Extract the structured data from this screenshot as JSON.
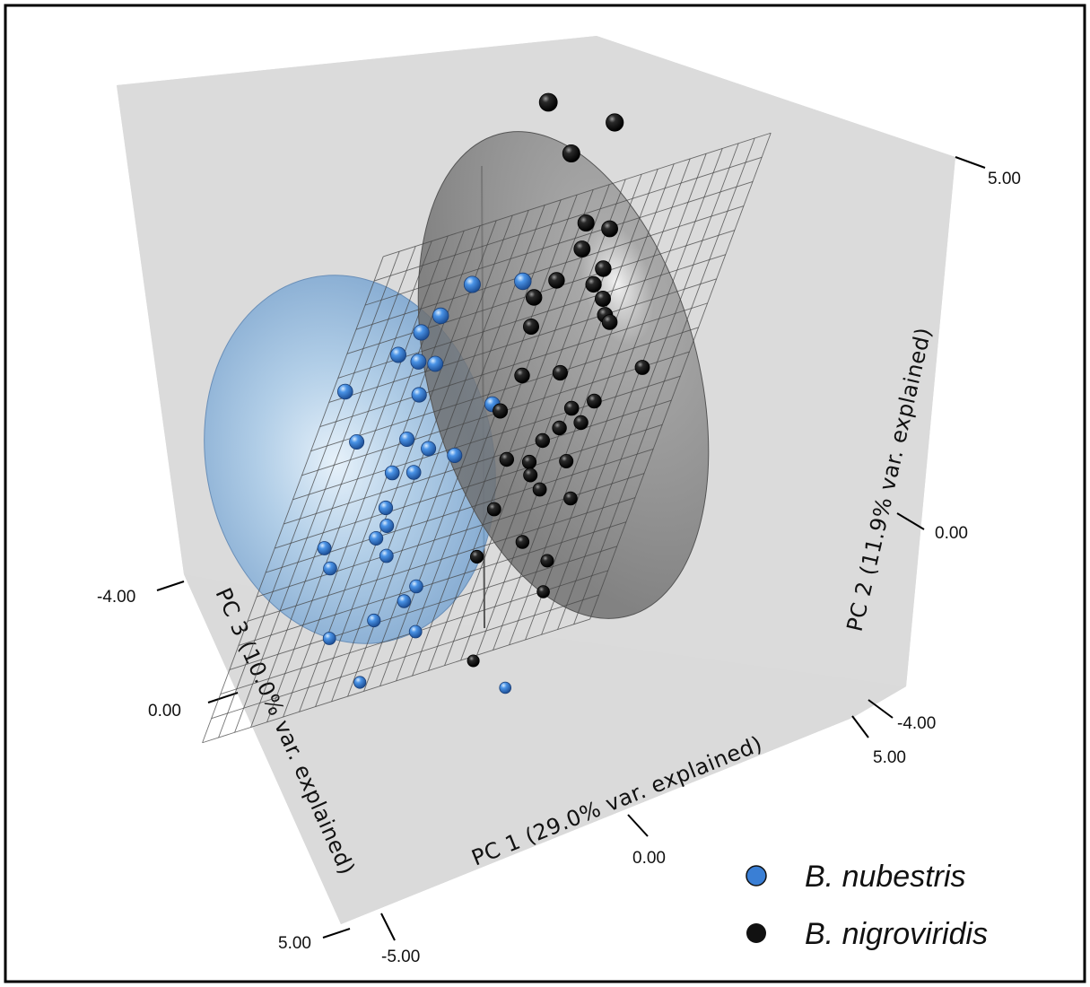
{
  "chart_data": {
    "type": "scatter",
    "title": "",
    "axes": {
      "x": {
        "label": "PC 1 (29.0% var. explained)",
        "ticks": [
          "-5.00",
          "0.00",
          "5.00"
        ],
        "range": [
          -5,
          5
        ]
      },
      "y": {
        "label": "PC 2 (11.9% var. explained)",
        "ticks": [
          "-4.00",
          "0.00",
          "5.00"
        ],
        "range": [
          -4,
          5
        ]
      },
      "z": {
        "label": "PC 3 (10.0% var. explained)",
        "ticks": [
          "-4.00",
          "0.00",
          "5.00"
        ],
        "range": [
          -4,
          5
        ]
      }
    },
    "legend_position": "bottom-right",
    "ellipsoids": true,
    "regression_plane": true,
    "series": [
      {
        "name": "B. nubestris",
        "color": "#3a7fd5",
        "points": [
          {
            "x": -4.3,
            "y": 1.9,
            "z": -0.6
          },
          {
            "x": -3.7,
            "y": 1.1,
            "z": -0.2
          },
          {
            "x": -3.1,
            "y": 2.1,
            "z": -1.0
          },
          {
            "x": -2.6,
            "y": 2.3,
            "z": -1.2
          },
          {
            "x": -2.4,
            "y": 2.0,
            "z": -0.8
          },
          {
            "x": -2.2,
            "y": 2.4,
            "z": -1.4
          },
          {
            "x": -2.1,
            "y": 1.6,
            "z": -0.4
          },
          {
            "x": -2.0,
            "y": 1.8,
            "z": -0.9
          },
          {
            "x": -1.6,
            "y": 2.6,
            "z": -1.8
          },
          {
            "x": -0.4,
            "y": 2.2,
            "z": -2.1
          },
          {
            "x": -2.3,
            "y": 0.9,
            "z": -0.2
          },
          {
            "x": -2.5,
            "y": 0.5,
            "z": 0.1
          },
          {
            "x": -2.4,
            "y": 0.1,
            "z": 0.5
          },
          {
            "x": -1.9,
            "y": 0.4,
            "z": 0.1
          },
          {
            "x": -1.7,
            "y": 0.6,
            "z": -0.2
          },
          {
            "x": -0.9,
            "y": 0.4,
            "z": -0.1
          },
          {
            "x": -0.2,
            "y": 0.9,
            "z": -0.6
          },
          {
            "x": -3.9,
            "y": -0.2,
            "z": 0.8
          },
          {
            "x": -3.6,
            "y": -0.5,
            "z": 1.0
          },
          {
            "x": -2.3,
            "y": -0.2,
            "z": 0.6
          },
          {
            "x": -2.1,
            "y": -0.6,
            "z": 0.9
          },
          {
            "x": -2.6,
            "y": -0.4,
            "z": 0.6
          },
          {
            "x": -3.2,
            "y": -1.5,
            "z": 1.6
          },
          {
            "x": -2.1,
            "y": -1.5,
            "z": 1.4
          },
          {
            "x": -1.4,
            "y": -1.4,
            "z": 1.2
          },
          {
            "x": -1.2,
            "y": -1.3,
            "z": 1.0
          },
          {
            "x": -0.8,
            "y": -1.8,
            "z": 1.6
          },
          {
            "x": -2.0,
            "y": -2.2,
            "z": 2.1
          },
          {
            "x": 2.4,
            "y": -2.7,
            "z": 2.6
          }
        ]
      },
      {
        "name": "B. nigroviridis",
        "color": "#111111",
        "points": [
          {
            "x": -0.6,
            "y": 4.8,
            "z": -3.4
          },
          {
            "x": 0.6,
            "y": 4.2,
            "z": -2.6
          },
          {
            "x": 1.6,
            "y": 4.4,
            "z": -2.9
          },
          {
            "x": 1.5,
            "y": 3.2,
            "z": -1.9
          },
          {
            "x": 1.6,
            "y": 2.9,
            "z": -1.6
          },
          {
            "x": 1.1,
            "y": 2.6,
            "z": -1.3
          },
          {
            "x": 2.3,
            "y": 3.1,
            "z": -1.7
          },
          {
            "x": 2.4,
            "y": 2.6,
            "z": -1.3
          },
          {
            "x": 2.2,
            "y": 2.4,
            "z": -1.2
          },
          {
            "x": 2.6,
            "y": 2.2,
            "z": -1.0
          },
          {
            "x": 2.8,
            "y": 2.0,
            "z": -0.8
          },
          {
            "x": 3.0,
            "y": 1.9,
            "z": -0.7
          },
          {
            "x": 0.4,
            "y": 2.3,
            "z": -1.4
          },
          {
            "x": 0.6,
            "y": 2.0,
            "z": -1.0
          },
          {
            "x": 0.7,
            "y": 1.4,
            "z": -0.5
          },
          {
            "x": 1.9,
            "y": 1.4,
            "z": -0.3
          },
          {
            "x": 0.3,
            "y": 1.0,
            "z": -0.2
          },
          {
            "x": 4.4,
            "y": 1.3,
            "z": 0.0
          },
          {
            "x": 3.2,
            "y": 1.0,
            "z": 0.2
          },
          {
            "x": 2.5,
            "y": 0.9,
            "z": 0.1
          },
          {
            "x": 2.3,
            "y": 0.7,
            "z": 0.3
          },
          {
            "x": 1.9,
            "y": 0.6,
            "z": 0.4
          },
          {
            "x": 2.9,
            "y": 0.7,
            "z": 0.3
          },
          {
            "x": 1.6,
            "y": 0.3,
            "z": 0.5
          },
          {
            "x": 0.9,
            "y": 0.4,
            "z": 0.4
          },
          {
            "x": 1.7,
            "y": 0.1,
            "z": 0.6
          },
          {
            "x": 2.1,
            "y": -0.1,
            "z": 0.8
          },
          {
            "x": 2.7,
            "y": 0.2,
            "z": 0.6
          },
          {
            "x": 0.9,
            "y": -0.2,
            "z": 0.9
          },
          {
            "x": 3.1,
            "y": -0.3,
            "z": 1.0
          },
          {
            "x": 0.7,
            "y": -0.8,
            "z": 1.3
          },
          {
            "x": 1.9,
            "y": -0.8,
            "z": 1.2
          },
          {
            "x": 2.8,
            "y": -1.1,
            "z": 1.5
          },
          {
            "x": 2.9,
            "y": -1.5,
            "z": 1.8
          },
          {
            "x": 1.3,
            "y": -2.2,
            "z": 2.3
          }
        ]
      }
    ]
  }
}
